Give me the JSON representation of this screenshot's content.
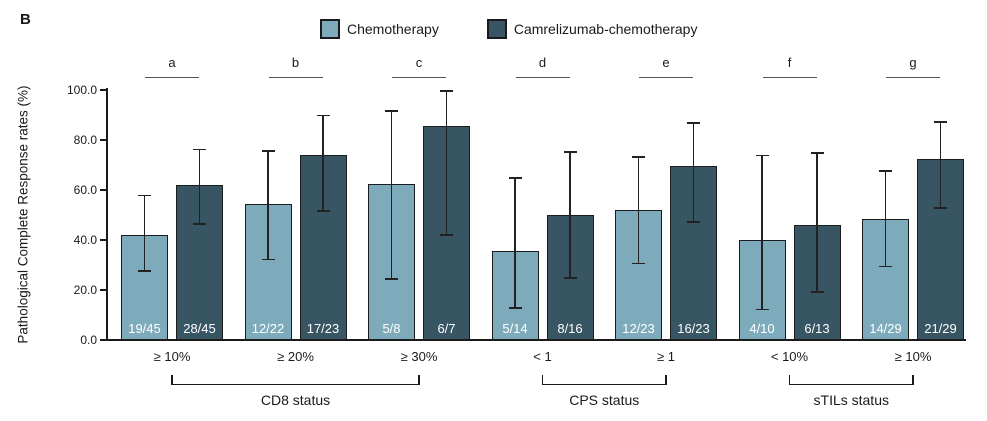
{
  "panel_label": "B",
  "legend": {
    "items": [
      {
        "label": "Chemotherapy",
        "color": "#7dabbc"
      },
      {
        "label": "Camrelizumab-chemotherapy",
        "color": "#375563"
      }
    ]
  },
  "colors": {
    "chemotherapy_bar": "#7dabbc",
    "camrelizumab_bar": "#375563",
    "bar_border": "#1c1c1c",
    "error_bar": "#222222",
    "axis": "#1a1a1a",
    "count_text": "#ffffff"
  },
  "chart_data": {
    "type": "bar",
    "title": "",
    "xlabel": "",
    "ylabel": "Pathological Complete Response rates (%)",
    "ylim": [
      0,
      100
    ],
    "yticks": [
      0,
      20,
      40,
      60,
      80,
      100
    ],
    "ytick_labels": [
      "0.0",
      "20.0",
      "40.0",
      "60.0",
      "80.0",
      "100.0"
    ],
    "grid": false,
    "legend_position": "top-center",
    "series_names": [
      "Chemotherapy",
      "Camrelizumab-chemotherapy"
    ],
    "groups": [
      {
        "tick": "≥ 10%",
        "letter": "a",
        "bars": [
          {
            "series": "Chemotherapy",
            "fraction": "19/45",
            "value": 42.2,
            "ci_low": 27.7,
            "ci_high": 57.8
          },
          {
            "series": "Camrelizumab-chemotherapy",
            "fraction": "28/45",
            "value": 62.2,
            "ci_low": 46.5,
            "ci_high": 76.2
          }
        ]
      },
      {
        "tick": "≥ 20%",
        "letter": "b",
        "bars": [
          {
            "series": "Chemotherapy",
            "fraction": "12/22",
            "value": 54.5,
            "ci_low": 32.2,
            "ci_high": 75.6
          },
          {
            "series": "Camrelizumab-chemotherapy",
            "fraction": "17/23",
            "value": 73.9,
            "ci_low": 51.6,
            "ci_high": 89.8
          }
        ]
      },
      {
        "tick": "≥ 30%",
        "letter": "c",
        "bars": [
          {
            "series": "Chemotherapy",
            "fraction": "5/8",
            "value": 62.5,
            "ci_low": 24.5,
            "ci_high": 91.5
          },
          {
            "series": "Camrelizumab-chemotherapy",
            "fraction": "6/7",
            "value": 85.7,
            "ci_low": 42.1,
            "ci_high": 99.6
          }
        ]
      },
      {
        "tick": "< 1",
        "letter": "d",
        "bars": [
          {
            "series": "Chemotherapy",
            "fraction": "5/14",
            "value": 35.7,
            "ci_low": 12.8,
            "ci_high": 64.9
          },
          {
            "series": "Camrelizumab-chemotherapy",
            "fraction": "8/16",
            "value": 50.0,
            "ci_low": 24.7,
            "ci_high": 75.3
          }
        ]
      },
      {
        "tick": "≥ 1",
        "letter": "e",
        "bars": [
          {
            "series": "Chemotherapy",
            "fraction": "12/23",
            "value": 52.2,
            "ci_low": 30.6,
            "ci_high": 73.2
          },
          {
            "series": "Camrelizumab-chemotherapy",
            "fraction": "16/23",
            "value": 69.6,
            "ci_low": 47.1,
            "ci_high": 86.8
          }
        ]
      },
      {
        "tick": "< 10%",
        "letter": "f",
        "bars": [
          {
            "series": "Chemotherapy",
            "fraction": "4/10",
            "value": 40.0,
            "ci_low": 12.2,
            "ci_high": 73.8
          },
          {
            "series": "Camrelizumab-chemotherapy",
            "fraction": "6/13",
            "value": 46.2,
            "ci_low": 19.2,
            "ci_high": 74.9
          }
        ]
      },
      {
        "tick": "≥ 10%",
        "letter": "g",
        "bars": [
          {
            "series": "Chemotherapy",
            "fraction": "14/29",
            "value": 48.3,
            "ci_low": 29.4,
            "ci_high": 67.5
          },
          {
            "series": "Camrelizumab-chemotherapy",
            "fraction": "21/29",
            "value": 72.4,
            "ci_low": 52.8,
            "ci_high": 87.3
          }
        ]
      }
    ],
    "sections": [
      {
        "label": "CD8 status",
        "from_group": 0,
        "to_group": 2
      },
      {
        "label": "CPS status",
        "from_group": 3,
        "to_group": 4
      },
      {
        "label": "sTILs status",
        "from_group": 5,
        "to_group": 6
      }
    ]
  }
}
